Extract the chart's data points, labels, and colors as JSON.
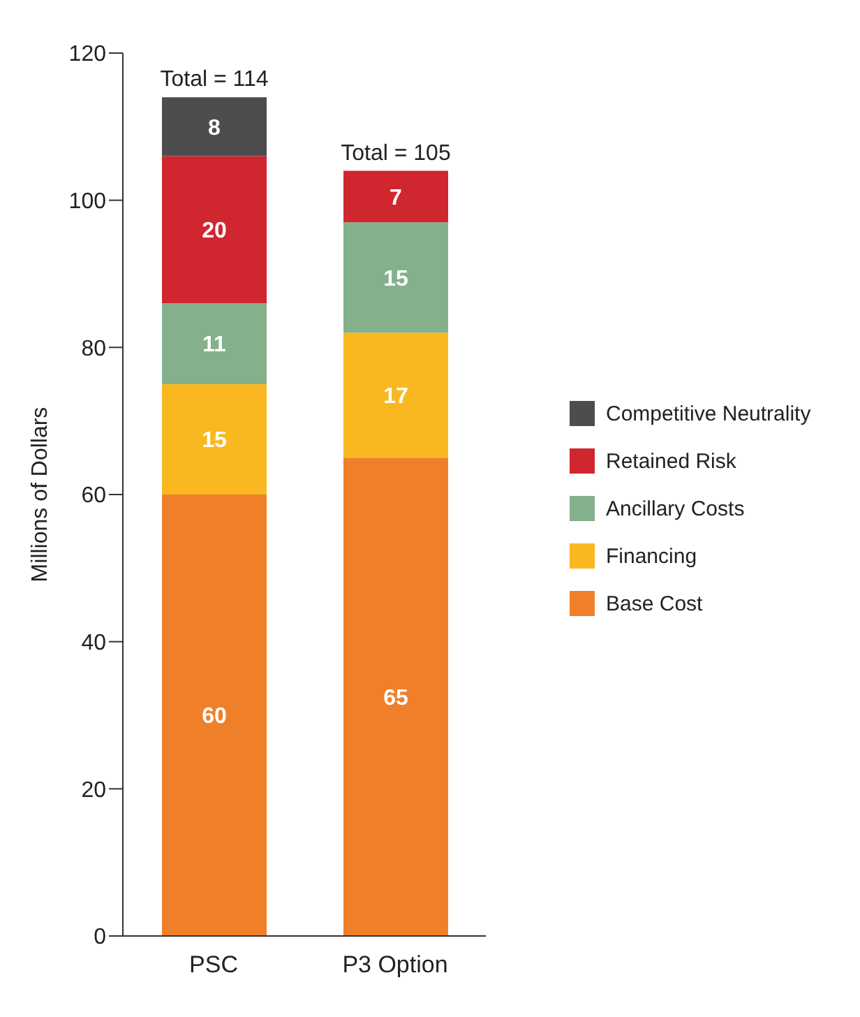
{
  "chart_data": {
    "type": "bar",
    "stacked": true,
    "ylabel": "Millions of Dollars",
    "categories": [
      "PSC",
      "P3 Option"
    ],
    "series": [
      {
        "name": "Base Cost",
        "color": "#f07f2a",
        "values": [
          60,
          65
        ]
      },
      {
        "name": "Financing",
        "color": "#f9b820",
        "values": [
          15,
          17
        ]
      },
      {
        "name": "Ancillary Costs",
        "color": "#84b08c",
        "values": [
          11,
          15
        ]
      },
      {
        "name": "Retained Risk",
        "color": "#d0262f",
        "values": [
          20,
          7
        ]
      },
      {
        "name": "Competitive Neutrality",
        "color": "#4d4d4f",
        "values": [
          8,
          null
        ]
      }
    ],
    "ylim": [
      0,
      120
    ],
    "yticks": [
      0,
      20,
      40,
      60,
      80,
      100,
      120
    ],
    "data_labels": true,
    "totals": [
      "Total = 114",
      "Total = 105"
    ],
    "legend": "right",
    "grid": false
  }
}
